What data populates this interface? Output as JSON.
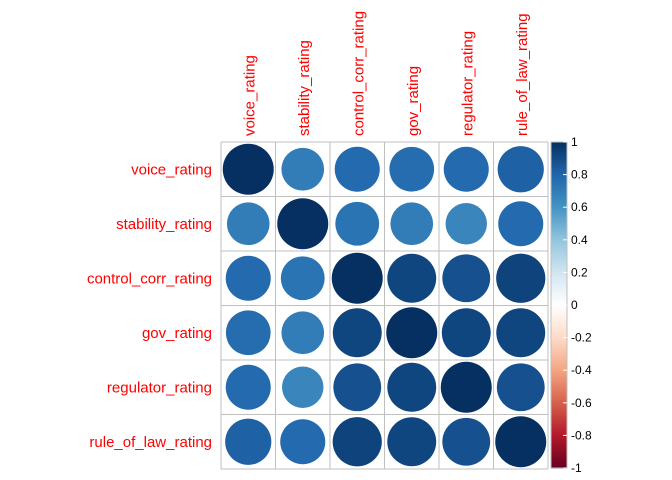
{
  "chart_data": {
    "type": "heatmap",
    "style": "circle correlation matrix",
    "variables": [
      "voice_rating",
      "stability_rating",
      "control_corr_rating",
      "gov_rating",
      "regulator_rating",
      "rule_of_law_rating"
    ],
    "matrix": [
      [
        1.0,
        0.7,
        0.78,
        0.77,
        0.78,
        0.82
      ],
      [
        0.7,
        1.0,
        0.74,
        0.7,
        0.66,
        0.78
      ],
      [
        0.78,
        0.74,
        1.0,
        0.92,
        0.88,
        0.93
      ],
      [
        0.77,
        0.7,
        0.92,
        1.0,
        0.92,
        0.92
      ],
      [
        0.78,
        0.66,
        0.88,
        0.92,
        1.0,
        0.88
      ],
      [
        0.82,
        0.78,
        0.93,
        0.92,
        0.88,
        1.0
      ]
    ],
    "colorbar": {
      "range": [
        -1,
        1
      ],
      "ticks": [
        "1",
        "0.8",
        "0.6",
        "0.4",
        "0.2",
        "0",
        "-0.2",
        "-0.4",
        "-0.6",
        "-0.8",
        "-1"
      ],
      "colors": [
        "#67001f",
        "#b2182b",
        "#d6604d",
        "#f4a582",
        "#fddbc7",
        "#ffffff",
        "#d1e5f0",
        "#92c5de",
        "#4393c3",
        "#2166ac",
        "#053061"
      ]
    },
    "grid": true,
    "label_color": "#ff0000"
  }
}
